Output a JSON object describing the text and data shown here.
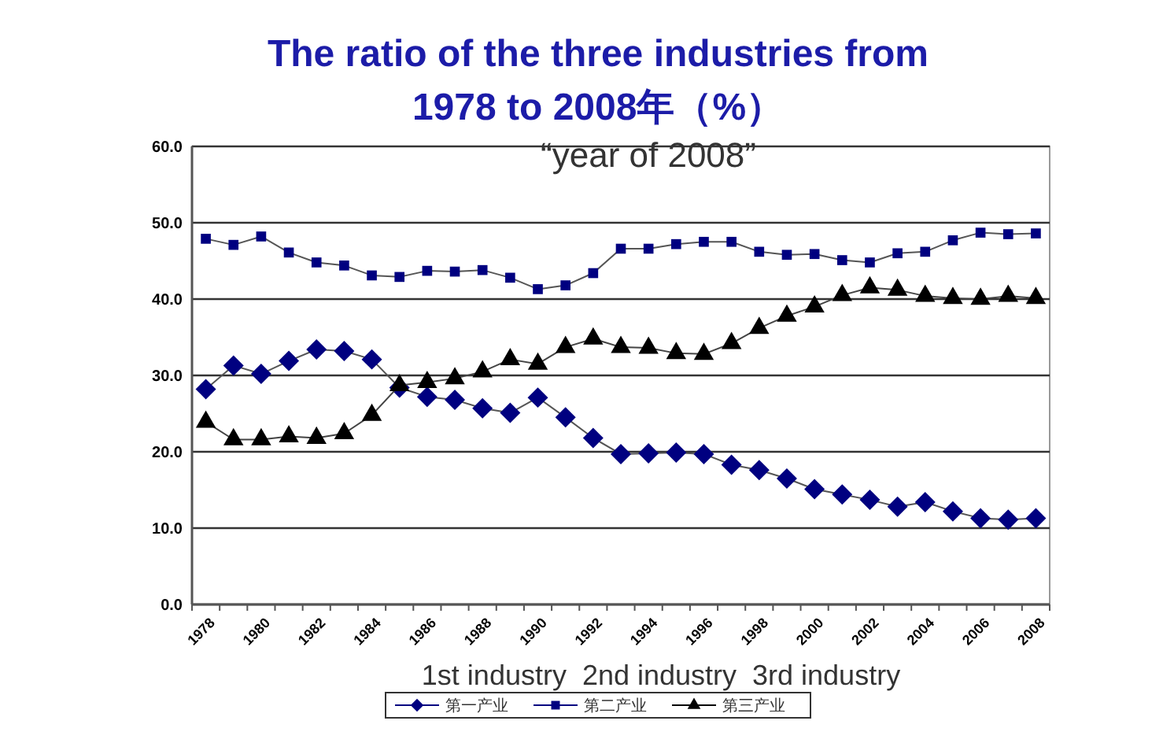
{
  "chart_data": {
    "type": "line",
    "title": "The ratio of the three industries from 1978 to 2008年（%）",
    "categories": [
      "1978",
      null,
      "1980",
      null,
      "1982",
      null,
      "1984",
      null,
      "1986",
      null,
      "1988",
      null,
      "1990",
      null,
      "1992",
      null,
      "1994",
      null,
      "1996",
      null,
      "1998",
      null,
      "2000",
      null,
      "2002",
      null,
      "2004",
      null,
      "2006",
      null,
      "2008"
    ],
    "series": [
      {
        "name": "第一产业",
        "color": "#000080",
        "marker": "diamond",
        "values": [
          28.2,
          31.3,
          30.2,
          31.9,
          33.4,
          33.2,
          32.1,
          28.4,
          27.2,
          26.8,
          25.7,
          25.1,
          27.1,
          24.5,
          21.8,
          19.7,
          19.8,
          19.9,
          19.7,
          18.3,
          17.6,
          16.5,
          15.1,
          14.4,
          13.7,
          12.8,
          13.4,
          12.2,
          11.3,
          11.1,
          11.3
        ]
      },
      {
        "name": "第二产业",
        "color": "#000080",
        "marker": "square",
        "values": [
          47.9,
          47.1,
          48.2,
          46.1,
          44.8,
          44.4,
          43.1,
          42.9,
          43.7,
          43.6,
          43.8,
          42.8,
          41.3,
          41.8,
          43.4,
          46.6,
          46.6,
          47.2,
          47.5,
          47.5,
          46.2,
          45.8,
          45.9,
          45.1,
          44.8,
          46.0,
          46.2,
          47.7,
          48.7,
          48.5,
          48.6
        ]
      },
      {
        "name": "第三产业",
        "color": "#000000",
        "marker": "triangle",
        "values": [
          23.9,
          21.6,
          21.6,
          22.0,
          21.8,
          22.4,
          24.8,
          28.7,
          29.1,
          29.6,
          30.5,
          32.1,
          31.5,
          33.7,
          34.8,
          33.7,
          33.6,
          32.9,
          32.8,
          34.2,
          36.2,
          37.8,
          39.0,
          40.5,
          41.5,
          41.2,
          40.4,
          40.1,
          40.0,
          40.4,
          40.1
        ]
      }
    ],
    "ylim": [
      0,
      60
    ],
    "yticks": [
      {
        "value": 0,
        "label": "0.0"
      },
      {
        "value": 10,
        "label": "10.0"
      },
      {
        "value": 20,
        "label": "20.0"
      },
      {
        "value": 30,
        "label": "30.0"
      },
      {
        "value": 40,
        "label": "40.0"
      },
      {
        "value": 50,
        "label": "50.0"
      },
      {
        "value": 60,
        "label": "60.0"
      }
    ],
    "grid": "y",
    "legend": "bottom",
    "line_style": "solid",
    "annotations": [
      "“year of 2008”",
      "1st industry  2nd industry  3rd industry"
    ]
  }
}
